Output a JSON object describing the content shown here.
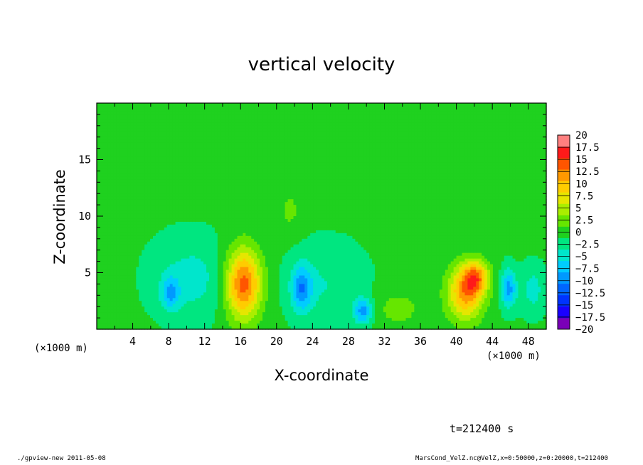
{
  "chart_data": {
    "type": "heatmap",
    "title": "vertical velocity",
    "xlabel": "X-coordinate",
    "ylabel": "Z-coordinate",
    "x_unit_label": "(×1000 m)",
    "xlim": [
      0,
      50
    ],
    "ylim": [
      0,
      20
    ],
    "x_ticks": [
      4,
      8,
      12,
      16,
      20,
      24,
      28,
      32,
      36,
      40,
      44,
      48
    ],
    "y_ticks": [
      5,
      10,
      15
    ],
    "colorbar": {
      "levels": [
        -20,
        -17.5,
        -15,
        -12.5,
        -10,
        -7.5,
        -5,
        -2.5,
        0,
        2.5,
        5,
        7.5,
        10,
        12.5,
        15,
        17.5,
        20
      ],
      "labels": [
        "20",
        "17.5",
        "15",
        "12.5",
        "10",
        "7.5",
        "5",
        "2.5",
        "0",
        "−2.5",
        "−5",
        "−7.5",
        "−10",
        "−12.5",
        "−15",
        "−17.5",
        "−20"
      ],
      "colors": [
        "#7a00b8",
        "#1a00ff",
        "#0033ff",
        "#0066ff",
        "#0099ff",
        "#00ccff",
        "#00e6cc",
        "#00e680",
        "#1fd11f",
        "#66e600",
        "#aaee00",
        "#e6e600",
        "#ffcc00",
        "#ff9900",
        "#ff5500",
        "#ff1a1a",
        "#ff8080"
      ]
    },
    "background_value": 0.5,
    "features": [
      {
        "x": 16.3,
        "z": 4.0,
        "peak": 16,
        "sx": 1.4,
        "sz": 2.2
      },
      {
        "x": 41.0,
        "z": 3.2,
        "peak": 13,
        "sx": 1.4,
        "sz": 1.7
      },
      {
        "x": 42.2,
        "z": 4.6,
        "peak": 11,
        "sx": 1.0,
        "sz": 1.0
      },
      {
        "x": 22.8,
        "z": 3.6,
        "peak": -9,
        "sx": 0.8,
        "sz": 1.4
      },
      {
        "x": 29.6,
        "z": 1.6,
        "peak": -9,
        "sx": 0.7,
        "sz": 0.8
      },
      {
        "x": 8.2,
        "z": 3.2,
        "peak": -7,
        "sx": 0.7,
        "sz": 1.0
      },
      {
        "x": 45.8,
        "z": 3.6,
        "peak": -9,
        "sx": 0.6,
        "sz": 1.2
      },
      {
        "x": 10.5,
        "z": 4.5,
        "peak": -4,
        "sx": 3.0,
        "sz": 2.5
      },
      {
        "x": 25.5,
        "z": 4.0,
        "peak": -3,
        "sx": 3.0,
        "sz": 2.5
      },
      {
        "x": 33.5,
        "z": 1.8,
        "peak": 3,
        "sx": 2.0,
        "sz": 1.2
      },
      {
        "x": 21.5,
        "z": 10.5,
        "peak": 2.5,
        "sx": 1.0,
        "sz": 1.5
      },
      {
        "x": 48.5,
        "z": 3.5,
        "peak": -4,
        "sx": 1.0,
        "sz": 1.5
      }
    ]
  },
  "time_label": "t=212400 s",
  "footer_left": "./gpview-new  2011-05-08",
  "footer_right": "MarsCond_VelZ.nc@VelZ,x=0:50000,z=0:20000,t=212400"
}
